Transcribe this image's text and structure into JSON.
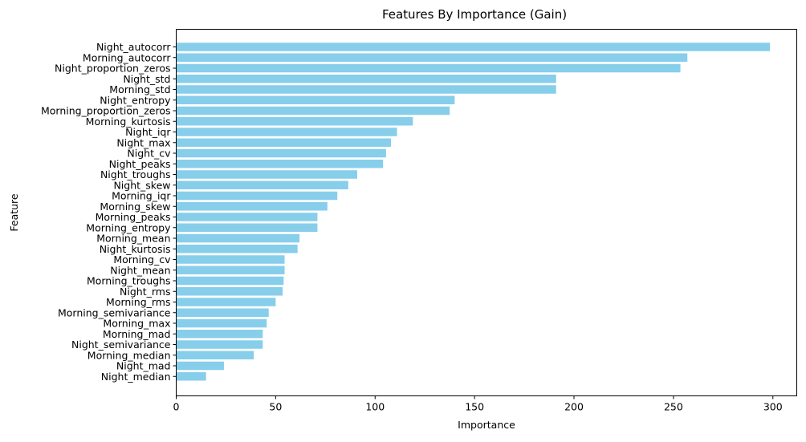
{
  "chart_data": {
    "type": "bar",
    "orientation": "horizontal",
    "title": "Features By Importance (Gain)",
    "xlabel": "Importance",
    "ylabel": "Feature",
    "xlim": [
      0,
      312
    ],
    "xticks": [
      0,
      50,
      100,
      150,
      200,
      250,
      300
    ],
    "grid": false,
    "bar_color": "#87ceeb",
    "categories": [
      "Night_autocorr",
      "Morning_autocorr",
      "Night_proportion_zeros",
      "Night_std",
      "Morning_std",
      "Night_entropy",
      "Morning_proportion_zeros",
      "Morning_kurtosis",
      "Night_iqr",
      "Night_max",
      "Night_cv",
      "Night_peaks",
      "Night_troughs",
      "Night_skew",
      "Morning_iqr",
      "Morning_skew",
      "Morning_peaks",
      "Morning_entropy",
      "Morning_mean",
      "Night_kurtosis",
      "Morning_cv",
      "Night_mean",
      "Morning_troughs",
      "Night_rms",
      "Morning_rms",
      "Morning_semivariance",
      "Morning_max",
      "Morning_mad",
      "Night_semivariance",
      "Morning_median",
      "Night_mad",
      "Night_median"
    ],
    "values": [
      298.5,
      257,
      253.5,
      191,
      191,
      140,
      137.5,
      119,
      111,
      108,
      105.5,
      104,
      91,
      86.5,
      81,
      76,
      71,
      71,
      62,
      61,
      54.5,
      54.5,
      54,
      53.5,
      50,
      46.5,
      45.5,
      43.5,
      43.5,
      39,
      24,
      15
    ]
  }
}
